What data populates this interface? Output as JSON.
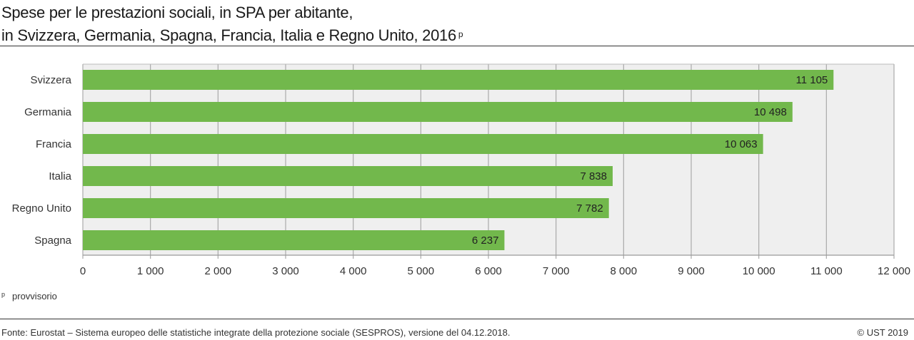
{
  "title": {
    "line1": "Spese per le prestazioni sociali, in SPA per abitante,",
    "line2": "in Svizzera, Germania, Spagna, Francia, Italia e Regno Unito, 2016",
    "superscript": "p"
  },
  "chart_data": {
    "type": "bar",
    "orientation": "horizontal",
    "categories": [
      "Svizzera",
      "Germania",
      "Francia",
      "Italia",
      "Regno Unito",
      "Spagna"
    ],
    "values": [
      11105,
      10498,
      10063,
      7838,
      7782,
      6237
    ],
    "value_labels": [
      "11 105",
      "10 498",
      "10 063",
      "7 838",
      "7 782",
      "6 237"
    ],
    "xlim": [
      0,
      12000
    ],
    "xticks": [
      0,
      1000,
      2000,
      3000,
      4000,
      5000,
      6000,
      7000,
      8000,
      9000,
      10000,
      11000,
      12000
    ],
    "xtick_labels": [
      "0",
      "1 000",
      "2 000",
      "3 000",
      "4 000",
      "5 000",
      "6 000",
      "7 000",
      "8 000",
      "9 000",
      "10 000",
      "11 000",
      "12 000"
    ],
    "grid": true,
    "colors": {
      "bar": "#72b84c",
      "plot_bg": "#efefef",
      "grid": "#aaaaaa"
    }
  },
  "footnote": {
    "symbol": "p",
    "text": "provvisorio"
  },
  "source": "Fonte: Eurostat – Sistema europeo delle statistiche integrate della protezione sociale (SESPROS), versione del 04.12.2018.",
  "copyright": "© UST 2019"
}
